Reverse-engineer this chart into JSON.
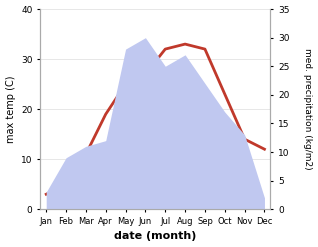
{
  "months": [
    "Jan",
    "Feb",
    "Mar",
    "Apr",
    "May",
    "Jun",
    "Jul",
    "Aug",
    "Sep",
    "Oct",
    "Nov",
    "Dec"
  ],
  "temperature": [
    3,
    5,
    11,
    19,
    25,
    27,
    32,
    33,
    32,
    23,
    14,
    12
  ],
  "precipitation": [
    3,
    9,
    11,
    12,
    28,
    30,
    25,
    27,
    22,
    17,
    13,
    2
  ],
  "temp_color": "#c0392b",
  "precip_color_fill": "#c0c8f0",
  "ylabel_left": "max temp (C)",
  "ylabel_right": "med. precipitation (kg/m2)",
  "xlabel": "date (month)",
  "ylim_left": [
    0,
    40
  ],
  "ylim_right": [
    0,
    35
  ],
  "yticks_left": [
    0,
    10,
    20,
    30,
    40
  ],
  "yticks_right": [
    0,
    5,
    10,
    15,
    20,
    25,
    30,
    35
  ],
  "background_color": "#ffffff"
}
